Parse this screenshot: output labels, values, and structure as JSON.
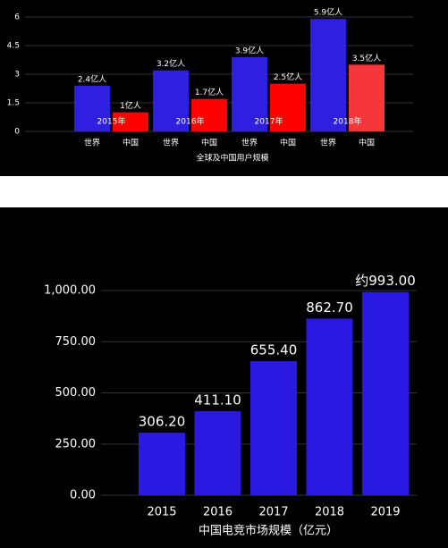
{
  "chart_data": [
    {
      "type": "grouped_bar",
      "x_label": "全球及中国用户规模",
      "categories": [
        "2015年",
        "2016年",
        "2017年",
        "2018年"
      ],
      "series": [
        {
          "name": "世界",
          "color": "#2f1fe0",
          "values": [
            2.4,
            3.2,
            3.9,
            5.9
          ],
          "value_labels": [
            "2.4亿人",
            "3.2亿人",
            "3.9亿人",
            "5.9亿人"
          ]
        },
        {
          "name": "中国",
          "color": "#fe0000",
          "colors": [
            "#fe0000",
            "#fe0000",
            "#fe0000",
            "#f5363a"
          ],
          "values": [
            1,
            1.7,
            2.5,
            3.5
          ],
          "value_labels": [
            "1亿人",
            "1.7亿人",
            "2.5亿人",
            "3.5亿人"
          ]
        }
      ],
      "ylim": [
        0,
        6
      ],
      "yticks": [
        0,
        1.5,
        3,
        4.5,
        6
      ],
      "grid": true
    },
    {
      "type": "bar",
      "x_label": "中国电竞市场规模（亿元）",
      "categories": [
        "2015",
        "2016",
        "2017",
        "2018",
        "2019"
      ],
      "values": [
        306.2,
        411.1,
        655.4,
        862.7,
        993
      ],
      "value_labels": [
        "306.20",
        "411.10",
        "655.40",
        "862.70",
        "约993.00"
      ],
      "color": "#2a19e0",
      "ylim": [
        0,
        1000
      ],
      "yticks": [
        {
          "value": 0,
          "label": "0.00"
        },
        {
          "value": 250,
          "label": "250.00"
        },
        {
          "value": 500,
          "label": "500.00"
        },
        {
          "value": 750,
          "label": "750.00"
        },
        {
          "value": 1000,
          "label": "1,000.00"
        }
      ],
      "grid": true
    }
  ]
}
